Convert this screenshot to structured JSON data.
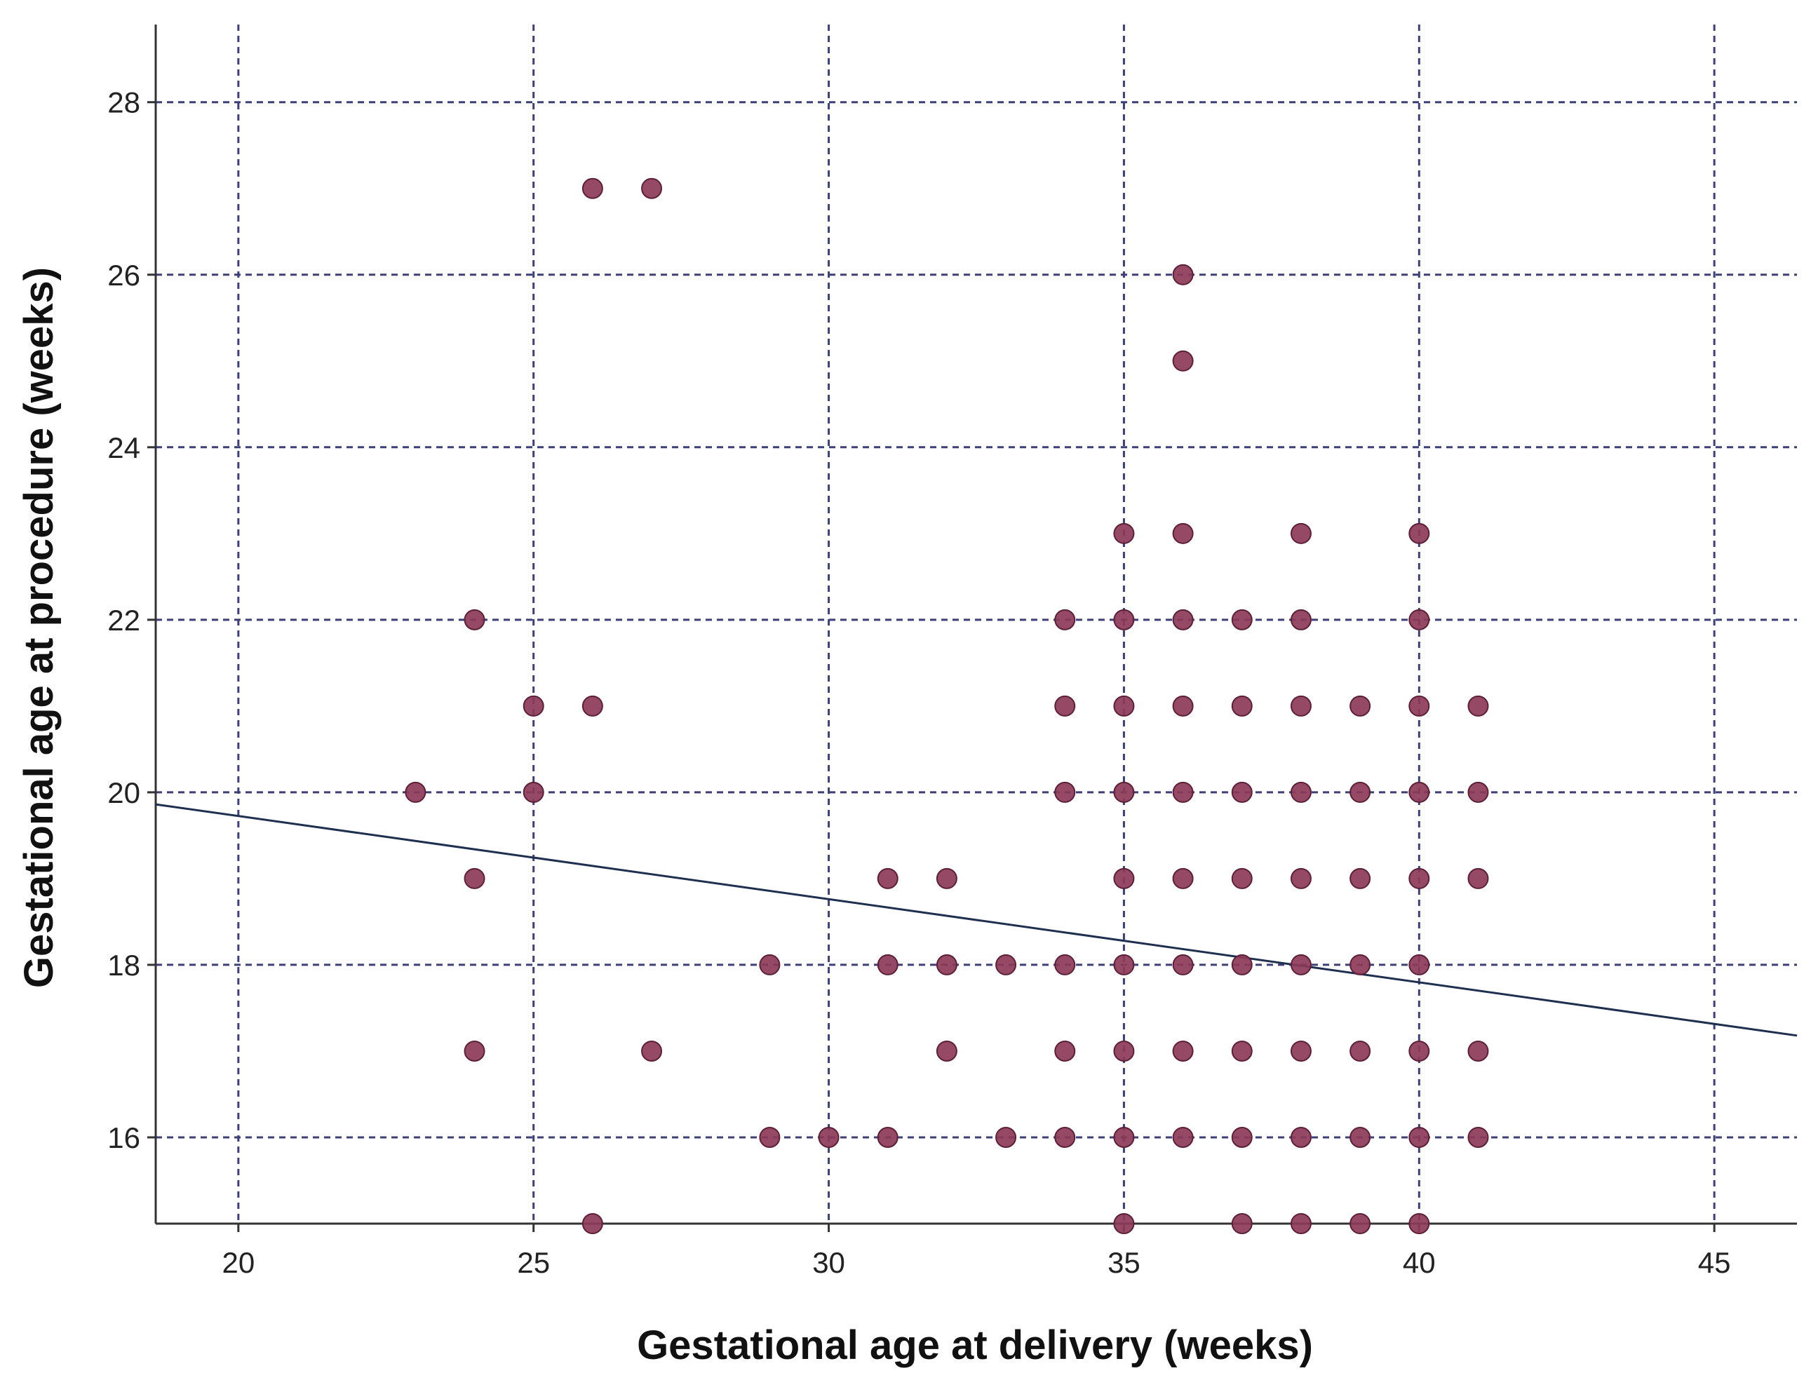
{
  "chart_data": {
    "type": "scatter",
    "title": "",
    "xlabel": "Gestational age at delivery (weeks)",
    "ylabel": "Gestational age at procedure (weeks)",
    "xlim": [
      18.6,
      46.4
    ],
    "ylim": [
      15.0,
      28.9
    ],
    "xticks": [
      "20",
      "25",
      "30",
      "35",
      "40",
      "45"
    ],
    "yticks": [
      "16",
      "18",
      "20",
      "22",
      "24",
      "26",
      "28"
    ],
    "grid": true,
    "colors": {
      "points": "#8c3a58",
      "point_edge": "#5e1f38",
      "line": "#1e2f4f",
      "grid": "#3c3f78",
      "axis": "#333333"
    },
    "points": [
      [
        26,
        27
      ],
      [
        27,
        27
      ],
      [
        36,
        26
      ],
      [
        36,
        25
      ],
      [
        35,
        23
      ],
      [
        36,
        23
      ],
      [
        38,
        23
      ],
      [
        40,
        23
      ],
      [
        24,
        22
      ],
      [
        34,
        22
      ],
      [
        35,
        22
      ],
      [
        36,
        22
      ],
      [
        37,
        22
      ],
      [
        38,
        22
      ],
      [
        40,
        22
      ],
      [
        25,
        21
      ],
      [
        26,
        21
      ],
      [
        34,
        21
      ],
      [
        35,
        21
      ],
      [
        36,
        21
      ],
      [
        37,
        21
      ],
      [
        38,
        21
      ],
      [
        39,
        21
      ],
      [
        40,
        21
      ],
      [
        41,
        21
      ],
      [
        23,
        20
      ],
      [
        25,
        20
      ],
      [
        34,
        20
      ],
      [
        35,
        20
      ],
      [
        36,
        20
      ],
      [
        37,
        20
      ],
      [
        38,
        20
      ],
      [
        39,
        20
      ],
      [
        40,
        20
      ],
      [
        41,
        20
      ],
      [
        24,
        19
      ],
      [
        31,
        19
      ],
      [
        32,
        19
      ],
      [
        35,
        19
      ],
      [
        36,
        19
      ],
      [
        37,
        19
      ],
      [
        38,
        19
      ],
      [
        39,
        19
      ],
      [
        40,
        19
      ],
      [
        41,
        19
      ],
      [
        29,
        18
      ],
      [
        31,
        18
      ],
      [
        32,
        18
      ],
      [
        33,
        18
      ],
      [
        34,
        18
      ],
      [
        35,
        18
      ],
      [
        36,
        18
      ],
      [
        37,
        18
      ],
      [
        38,
        18
      ],
      [
        39,
        18
      ],
      [
        40,
        18
      ],
      [
        24,
        17
      ],
      [
        27,
        17
      ],
      [
        32,
        17
      ],
      [
        34,
        17
      ],
      [
        35,
        17
      ],
      [
        36,
        17
      ],
      [
        37,
        17
      ],
      [
        38,
        17
      ],
      [
        39,
        17
      ],
      [
        40,
        17
      ],
      [
        41,
        17
      ],
      [
        29,
        16
      ],
      [
        30,
        16
      ],
      [
        31,
        16
      ],
      [
        33,
        16
      ],
      [
        34,
        16
      ],
      [
        35,
        16
      ],
      [
        36,
        16
      ],
      [
        37,
        16
      ],
      [
        38,
        16
      ],
      [
        39,
        16
      ],
      [
        40,
        16
      ],
      [
        41,
        16
      ],
      [
        26,
        15
      ],
      [
        35,
        15
      ],
      [
        37,
        15
      ],
      [
        38,
        15
      ],
      [
        39,
        15
      ],
      [
        40,
        15
      ]
    ],
    "fit_line": {
      "x": [
        18.6,
        46.4
      ],
      "y": [
        19.86,
        17.18
      ]
    }
  }
}
